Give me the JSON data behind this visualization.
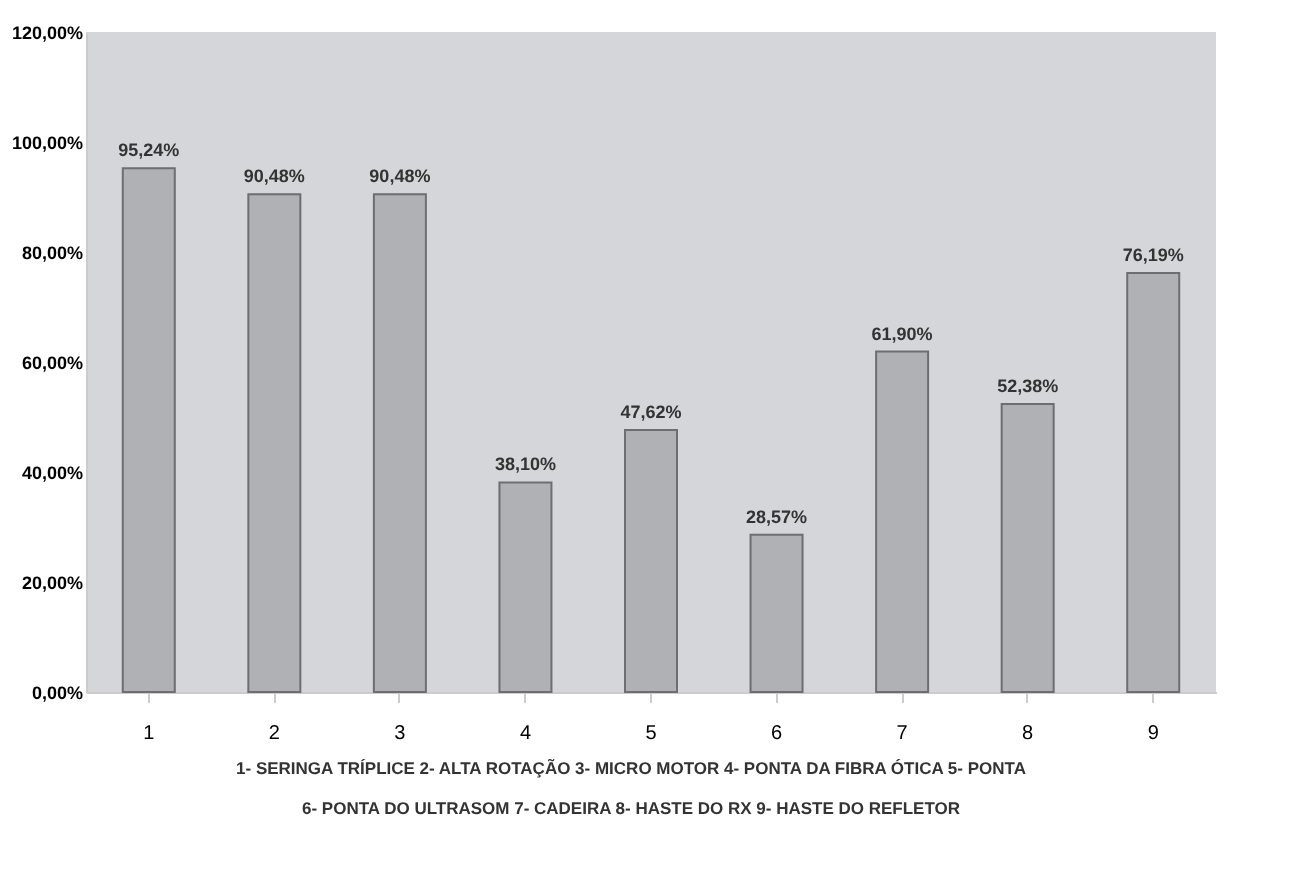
{
  "chart_data": {
    "type": "bar",
    "categories": [
      "1",
      "2",
      "3",
      "4",
      "5",
      "6",
      "7",
      "8",
      "9"
    ],
    "values": [
      95.24,
      90.48,
      90.48,
      38.1,
      47.62,
      28.57,
      61.9,
      52.38,
      76.19
    ],
    "value_labels": [
      "95,24%",
      "90,48%",
      "90,48%",
      "38,10%",
      "47,62%",
      "28,57%",
      "61,90%",
      "52,38%",
      "76,19%"
    ],
    "color": "#b0b1b5",
    "ylim": [
      0,
      120
    ],
    "yticks": [
      {
        "value": 0,
        "label": "0,00%"
      },
      {
        "value": 20,
        "label": "20,00%"
      },
      {
        "value": 40,
        "label": "40,00%"
      },
      {
        "value": 60,
        "label": "60,00%"
      },
      {
        "value": 80,
        "label": "80,00%"
      },
      {
        "value": 100,
        "label": "100,00%"
      },
      {
        "value": 120,
        "label": "120,00%"
      }
    ],
    "grid": false,
    "annotations": [
      "1- SERINGA TRÍPLICE",
      "2- ALTA ROTAÇÃO",
      "3- MICRO MOTOR",
      "4- PONTA DA FIBRA ÓTICA",
      "5- PONTA",
      "6- PONTA DO ULTRASOM",
      "7- CADEIRA",
      "8- HASTE DO RX",
      "9- HASTE DO REFLETOR"
    ]
  }
}
